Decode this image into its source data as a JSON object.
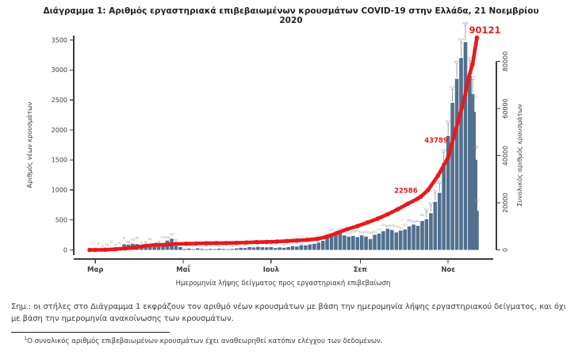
{
  "title": "Διάγραμμα 1: Αριθμός εργαστηριακά επιβεβαιωμένων κρουσμάτων COVID-19 στην Ελλάδα, 21 Νοεμβρίου 2020",
  "note": "Σημ.: οι στήλες στο Διάγραμμα 1 εκφράζουν τον αριθμό νέων κρουσμάτων με βάση την ημερομηνία λήψης εργαστηριακού δείγματος, και όχι με βάση την ημερομηνία ανακοίνωσης των κρουσμάτων.",
  "footnote": {
    "marker": "1",
    "text": "Ο συνολικός αριθμός επιβεβαιωμένων κρουσμάτων έχει αναθεωρηθεί κατόπιν ελέγχου των δεδομένων."
  },
  "colors": {
    "bar": "#51708f",
    "line": "#e8191c",
    "annotation": "#e8191c",
    "axis": "#3c3c3c",
    "tick_label": "#3a3a3a",
    "tiny_label": "#8e8e8e",
    "title": "#1c2025"
  },
  "chart_data": {
    "type": "bar",
    "combo": "bar+line",
    "xlabel": "Ημερομηνία λήψης δείγματος προς εργαστηριακή επιβεβαίωση",
    "left_axis": {
      "label": "Αριθμός νέων κρουσμάτων",
      "ticks": [
        0,
        500,
        1000,
        1500,
        2000,
        2500,
        3000,
        3500
      ],
      "range": [
        0,
        3500
      ]
    },
    "right_axis": {
      "label": "Συνολικός αριθμός κρουσμάτων",
      "ticks": [
        0,
        20000,
        40000,
        60000,
        80000
      ],
      "range": [
        0,
        80000
      ]
    },
    "x_ticks": [
      {
        "label": "Μαρ",
        "d": "03-01"
      },
      {
        "label": "Μαΐ",
        "d": "05-01"
      },
      {
        "label": "Ιουλ",
        "d": "07-01"
      },
      {
        "label": "Σεπ",
        "d": "09-01"
      },
      {
        "label": "Νοε",
        "d": "11-01"
      }
    ],
    "bar_series": {
      "name": "Αριθμός νέων κρουσμάτων (ανά ημερομηνία λήψης δείγματος)",
      "points": [
        [
          "02-26",
          3
        ],
        [
          "02-29",
          4
        ],
        [
          "03-03",
          8
        ],
        [
          "03-06",
          10
        ],
        [
          "03-09",
          16
        ],
        [
          "03-12",
          33
        ],
        [
          "03-15",
          35
        ],
        [
          "03-18",
          42
        ],
        [
          "03-21",
          94
        ],
        [
          "03-24",
          88
        ],
        [
          "03-27",
          102
        ],
        [
          "03-30",
          96
        ],
        [
          "04-02",
          72
        ],
        [
          "04-05",
          62
        ],
        [
          "04-08",
          82
        ],
        [
          "04-11",
          48
        ],
        [
          "04-14",
          58
        ],
        [
          "04-17",
          112
        ],
        [
          "04-20",
          156
        ],
        [
          "04-23",
          187
        ],
        [
          "04-26",
          62
        ],
        [
          "04-29",
          46
        ],
        [
          "05-02",
          16
        ],
        [
          "05-05",
          22
        ],
        [
          "05-08",
          12
        ],
        [
          "05-11",
          26
        ],
        [
          "05-14",
          16
        ],
        [
          "05-17",
          10
        ],
        [
          "05-20",
          16
        ],
        [
          "05-23",
          12
        ],
        [
          "05-26",
          21
        ],
        [
          "05-29",
          14
        ],
        [
          "06-01",
          10
        ],
        [
          "06-04",
          16
        ],
        [
          "06-07",
          27
        ],
        [
          "06-10",
          36
        ],
        [
          "06-13",
          31
        ],
        [
          "06-16",
          46
        ],
        [
          "06-19",
          41
        ],
        [
          "06-22",
          52
        ],
        [
          "06-25",
          46
        ],
        [
          "06-28",
          42
        ],
        [
          "07-01",
          46
        ],
        [
          "07-04",
          31
        ],
        [
          "07-07",
          42
        ],
        [
          "07-10",
          36
        ],
        [
          "07-13",
          47
        ],
        [
          "07-16",
          62
        ],
        [
          "07-19",
          57
        ],
        [
          "07-22",
          82
        ],
        [
          "07-25",
          77
        ],
        [
          "07-28",
          92
        ],
        [
          "07-31",
          102
        ],
        [
          "08-03",
          122
        ],
        [
          "08-06",
          152
        ],
        [
          "08-09",
          192
        ],
        [
          "08-12",
          232
        ],
        [
          "08-15",
          252
        ],
        [
          "08-18",
          272
        ],
        [
          "08-21",
          242
        ],
        [
          "08-24",
          222
        ],
        [
          "08-27",
          232
        ],
        [
          "08-30",
          212
        ],
        [
          "09-02",
          242
        ],
        [
          "09-05",
          222
        ],
        [
          "09-08",
          182
        ],
        [
          "09-11",
          252
        ],
        [
          "09-14",
          272
        ],
        [
          "09-17",
          312
        ],
        [
          "09-20",
          352
        ],
        [
          "09-23",
          332
        ],
        [
          "09-26",
          292
        ],
        [
          "09-29",
          322
        ],
        [
          "10-02",
          342
        ],
        [
          "10-05",
          392
        ],
        [
          "10-08",
          422
        ],
        [
          "10-11",
          402
        ],
        [
          "10-14",
          482
        ],
        [
          "10-17",
          512
        ],
        [
          "10-20",
          612
        ],
        [
          "10-23",
          802
        ],
        [
          "10-26",
          952
        ],
        [
          "10-29",
          1452
        ],
        [
          "11-01",
          1902
        ],
        [
          "11-04",
          2452
        ],
        [
          "11-07",
          2852
        ],
        [
          "11-10",
          3202
        ],
        [
          "11-13",
          3465
        ],
        [
          "11-16",
          2902
        ],
        [
          "11-18",
          2602
        ],
        [
          "11-19",
          2302
        ],
        [
          "11-20",
          1502
        ],
        [
          "11-21",
          652
        ]
      ]
    },
    "line_series": {
      "name": "Συνολικός αριθμός κρουσμάτων (αθροιστικά)",
      "points": [
        [
          "02-26",
          3
        ],
        [
          "03-01",
          7
        ],
        [
          "03-08",
          66
        ],
        [
          "03-15",
          331
        ],
        [
          "03-22",
          624
        ],
        [
          "03-29",
          1061
        ],
        [
          "04-05",
          1735
        ],
        [
          "04-12",
          2114
        ],
        [
          "04-19",
          2235
        ],
        [
          "04-26",
          2517
        ],
        [
          "05-03",
          2620
        ],
        [
          "05-10",
          2716
        ],
        [
          "05-17",
          2834
        ],
        [
          "05-24",
          2882
        ],
        [
          "05-31",
          2915
        ],
        [
          "06-07",
          2980
        ],
        [
          "06-14",
          3112
        ],
        [
          "06-21",
          3287
        ],
        [
          "06-28",
          3390
        ],
        [
          "07-05",
          3519
        ],
        [
          "07-12",
          3772
        ],
        [
          "07-19",
          4007
        ],
        [
          "07-26",
          4279
        ],
        [
          "08-02",
          4662
        ],
        [
          "08-09",
          5623
        ],
        [
          "08-16",
          7222
        ],
        [
          "08-23",
          8819
        ],
        [
          "08-30",
          10134
        ],
        [
          "09-06",
          11663
        ],
        [
          "09-13",
          13240
        ],
        [
          "09-20",
          15142
        ],
        [
          "09-27",
          17228
        ],
        [
          "10-04",
          19613
        ],
        [
          "10-11",
          21772
        ],
        [
          "10-13",
          22586
        ],
        [
          "10-18",
          25370
        ],
        [
          "10-25",
          31496
        ],
        [
          "11-01",
          39251
        ],
        [
          "11-03",
          43789
        ],
        [
          "11-08",
          54809
        ],
        [
          "11-12",
          63321
        ],
        [
          "11-15",
          72510
        ],
        [
          "11-18",
          78825
        ],
        [
          "11-21",
          90121
        ]
      ]
    },
    "annotations": [
      {
        "text": "22586",
        "d": "10-13",
        "v": 22586,
        "style": "milestone"
      },
      {
        "text": "43789",
        "d": "11-03",
        "v": 43789,
        "style": "milestone"
      },
      {
        "text": "90121",
        "d": "11-21",
        "v": 90121,
        "style": "final"
      }
    ]
  }
}
